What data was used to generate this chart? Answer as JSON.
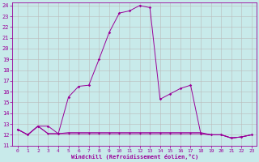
{
  "xlabel": "Windchill (Refroidissement éolien,°C)",
  "background_color": "#c8eaea",
  "line_color": "#990099",
  "grid_color": "#bbbbbb",
  "xlim": [
    -0.5,
    23.5
  ],
  "ylim": [
    11,
    24.3
  ],
  "yticks": [
    11,
    12,
    13,
    14,
    15,
    16,
    17,
    18,
    19,
    20,
    21,
    22,
    23,
    24
  ],
  "xticks": [
    0,
    1,
    2,
    3,
    4,
    5,
    6,
    7,
    8,
    9,
    10,
    11,
    12,
    13,
    14,
    15,
    16,
    17,
    18,
    19,
    20,
    21,
    22,
    23
  ],
  "main_line_x": [
    0,
    1,
    2,
    3,
    4,
    5,
    6,
    7,
    8,
    9,
    10,
    11,
    12,
    13,
    14,
    15,
    16,
    17,
    18,
    19,
    20,
    21,
    22,
    23
  ],
  "main_line_y": [
    12.5,
    12.0,
    12.8,
    12.8,
    12.1,
    15.5,
    16.5,
    16.6,
    19.0,
    21.5,
    23.3,
    23.5,
    24.0,
    23.8,
    15.3,
    15.8,
    16.3,
    16.6,
    12.1,
    12.0,
    12.0,
    11.7,
    11.8,
    12.0
  ],
  "flat_line_x": [
    0,
    1,
    2,
    3,
    4,
    5,
    6,
    7,
    8,
    9,
    10,
    11,
    12,
    13,
    14,
    15,
    16,
    17,
    18,
    19,
    20,
    21,
    22,
    23
  ],
  "flat_line_y": [
    12.5,
    12.0,
    12.8,
    12.1,
    12.1,
    12.1,
    12.1,
    12.1,
    12.1,
    12.1,
    12.1,
    12.1,
    12.1,
    12.1,
    12.1,
    12.1,
    12.1,
    12.1,
    12.1,
    12.0,
    12.0,
    11.7,
    11.8,
    12.0
  ],
  "flat2_line_y": [
    12.5,
    12.0,
    12.8,
    12.1,
    12.1,
    12.2,
    12.2,
    12.2,
    12.2,
    12.2,
    12.2,
    12.2,
    12.2,
    12.2,
    12.2,
    12.2,
    12.2,
    12.2,
    12.2,
    12.0,
    12.0,
    11.7,
    11.8,
    12.0
  ]
}
